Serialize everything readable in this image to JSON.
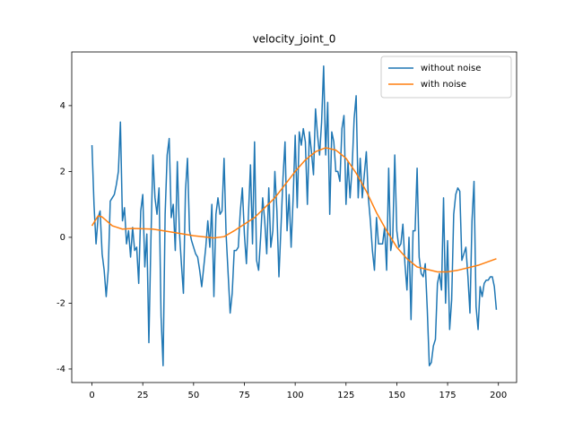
{
  "chart_data": {
    "type": "line",
    "title": "velocity_joint_0",
    "xlim": [
      -9.95,
      208.95
    ],
    "xticks": [
      0,
      25,
      50,
      75,
      100,
      125,
      150,
      175,
      200
    ],
    "ylim": [
      -4.41,
      5.63
    ],
    "yticks": [
      -4,
      -2,
      0,
      2,
      4
    ],
    "grid": false,
    "legend": "upper right",
    "series": [
      {
        "name": "without noise",
        "color": "#1f77b4",
        "x": [
          0,
          1,
          2,
          3,
          4,
          5,
          6,
          7,
          8,
          9,
          10,
          11,
          12,
          13,
          14,
          15,
          16,
          17,
          18,
          19,
          20,
          21,
          22,
          23,
          24,
          25,
          26,
          27,
          28,
          29,
          30,
          31,
          32,
          33,
          34,
          35,
          36,
          37,
          38,
          39,
          40,
          41,
          42,
          43,
          44,
          45,
          46,
          47,
          48,
          49,
          50,
          51,
          52,
          53,
          54,
          55,
          56,
          57,
          58,
          59,
          60,
          61,
          62,
          63,
          64,
          65,
          66,
          67,
          68,
          69,
          70,
          71,
          72,
          73,
          74,
          75,
          76,
          77,
          78,
          79,
          80,
          81,
          82,
          83,
          84,
          85,
          86,
          87,
          88,
          89,
          90,
          91,
          92,
          93,
          94,
          95,
          96,
          97,
          98,
          99,
          100,
          101,
          102,
          103,
          104,
          105,
          106,
          107,
          108,
          109,
          110,
          111,
          112,
          113,
          114,
          115,
          116,
          117,
          118,
          119,
          120,
          121,
          122,
          123,
          124,
          125,
          126,
          127,
          128,
          129,
          130,
          131,
          132,
          133,
          134,
          135,
          136,
          137,
          138,
          139,
          140,
          141,
          142,
          143,
          144,
          145,
          146,
          147,
          148,
          149,
          150,
          151,
          152,
          153,
          154,
          155,
          156,
          157,
          158,
          159,
          160,
          161,
          162,
          163,
          164,
          165,
          166,
          167,
          168,
          169,
          170,
          171,
          172,
          173,
          174,
          175,
          176,
          177,
          178,
          179,
          180,
          181,
          182,
          183,
          184,
          185,
          186,
          187,
          188,
          189,
          190,
          191,
          192,
          193,
          194,
          195,
          196,
          197,
          198,
          199
        ],
        "values": [
          2.8,
          1.0,
          -0.2,
          0.6,
          0.8,
          -0.5,
          -1.0,
          -1.8,
          -1.0,
          1.1,
          1.2,
          1.3,
          1.6,
          2.0,
          3.5,
          0.5,
          0.9,
          -0.2,
          0.2,
          -0.6,
          0.3,
          -0.4,
          -0.3,
          -1.4,
          0.8,
          1.3,
          -0.9,
          0.1,
          -3.2,
          -0.1,
          2.5,
          1.2,
          0.7,
          1.5,
          -2.4,
          -3.9,
          0.7,
          2.5,
          3.0,
          0.6,
          1.0,
          -0.4,
          2.3,
          0.2,
          -0.8,
          -1.7,
          1.4,
          2.4,
          0.2,
          -0.1,
          -0.3,
          -0.5,
          -0.6,
          -1.0,
          -1.5,
          -0.9,
          -0.3,
          0.5,
          -0.3,
          1.0,
          -1.8,
          0.7,
          1.2,
          0.7,
          0.8,
          2.4,
          0.1,
          -1.1,
          -2.3,
          -1.7,
          -0.4,
          -0.4,
          -0.3,
          0.8,
          1.5,
          0.1,
          -0.8,
          0.7,
          2.2,
          -0.2,
          2.9,
          -0.7,
          -1.0,
          0.0,
          1.2,
          0.5,
          -0.5,
          1.5,
          -0.3,
          0.2,
          2.0,
          0.8,
          -1.2,
          0.3,
          1.8,
          2.9,
          0.2,
          1.3,
          -0.3,
          1.2,
          3.1,
          0.9,
          3.2,
          2.8,
          3.3,
          2.9,
          1.0,
          3.2,
          2.6,
          1.9,
          3.9,
          3.1,
          2.5,
          3.5,
          5.2,
          2.5,
          4.1,
          0.7,
          3.2,
          2.9,
          2.0,
          2.0,
          1.7,
          3.3,
          3.7,
          1.0,
          2.3,
          1.2,
          2.1,
          3.6,
          4.3,
          1.2,
          2.4,
          1.2,
          1.9,
          2.6,
          1.2,
          0.5,
          -0.4,
          -1.0,
          0.6,
          -0.2,
          -0.2,
          -0.2,
          0.3,
          -1.0,
          2.1,
          -0.4,
          0.0,
          2.5,
          0.2,
          -0.3,
          -0.2,
          0.4,
          -0.8,
          -1.6,
          0.0,
          -2.5,
          0.2,
          0.2,
          2.1,
          -0.6,
          -1.1,
          -1.2,
          -0.8,
          -2.2,
          -3.9,
          -3.8,
          -3.3,
          -3.1,
          -1.4,
          -1.1,
          -1.6,
          1.2,
          -2.0,
          -0.1,
          -2.8,
          -1.9,
          0.7,
          1.3,
          1.5,
          1.4,
          -0.7,
          -0.5,
          -0.3,
          -1.2,
          -2.3,
          0.5,
          1.7,
          -2.1,
          -2.8,
          -1.5,
          -1.8,
          -1.4,
          -1.3,
          -1.3,
          -1.2,
          -1.2,
          -1.5,
          -2.2
        ]
      },
      {
        "name": "with noise",
        "color": "#ff7f0e",
        "x": [
          0,
          3,
          5,
          10,
          15,
          20,
          30,
          40,
          50,
          60,
          65,
          70,
          80,
          90,
          100,
          105,
          110,
          115,
          120,
          125,
          130,
          135,
          140,
          145,
          150,
          155,
          160,
          170,
          175,
          180,
          190,
          199
        ],
        "values": [
          0.35,
          0.65,
          0.62,
          0.35,
          0.25,
          0.27,
          0.25,
          0.15,
          0.05,
          -0.02,
          0.02,
          0.2,
          0.6,
          1.2,
          2.0,
          2.35,
          2.6,
          2.72,
          2.65,
          2.4,
          1.95,
          1.4,
          0.75,
          0.2,
          -0.3,
          -0.65,
          -0.9,
          -1.05,
          -1.05,
          -1.0,
          -0.85,
          -0.65
        ]
      }
    ]
  }
}
